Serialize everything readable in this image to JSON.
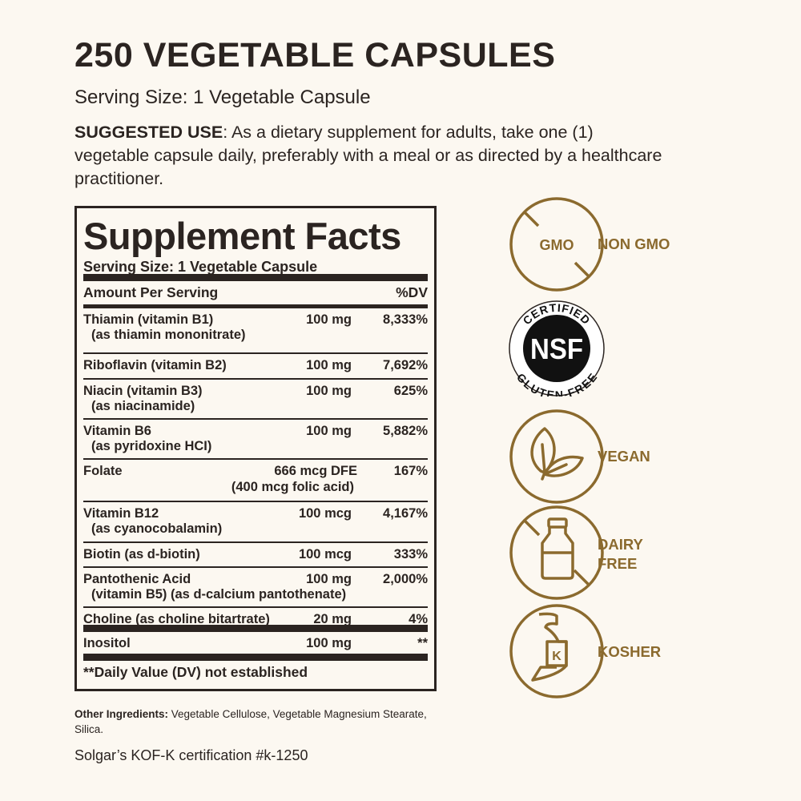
{
  "header": {
    "title": "250 VEGETABLE CAPSULES",
    "serving_size": "Serving Size: 1 Vegetable Capsule",
    "suggested_use_label": "SUGGESTED USE",
    "suggested_use_text": ": As a dietary supplement for adults, take one (1) vegetable capsule daily, preferably with a meal or as directed by a healthcare practitioner."
  },
  "facts": {
    "title": "Supplement Facts",
    "serving_size": "Serving Size: 1 Vegetable Capsule",
    "amount_header": "Amount Per Serving",
    "dv_header": "%DV",
    "rows": [
      {
        "name": "Thiamin (vitamin B1)",
        "sub": "(as thiamin mononitrate)",
        "amount": "100 mg",
        "dv": "8,333%"
      },
      {
        "name": "Riboflavin (vitamin B2)",
        "amount": "100 mg",
        "dv": "7,692%"
      },
      {
        "name": "Niacin (vitamin B3)",
        "sub": "(as niacinamide)",
        "amount": "100 mg",
        "dv": "625%"
      },
      {
        "name": "Vitamin B6",
        "sub": "(as pyridoxine HCI)",
        "amount": "100 mg",
        "dv": "5,882%"
      },
      {
        "name": "Folate",
        "amount": "666 mcg DFE",
        "amount2": "(400 mcg folic acid)",
        "dv": "167%"
      },
      {
        "name": "Vitamin B12",
        "sub": "(as cyanocobalamin)",
        "amount": "100 mcg",
        "dv": "4,167%"
      },
      {
        "name": "Biotin (as d-biotin)",
        "amount": "100 mcg",
        "dv": "333%"
      },
      {
        "name": "Pantothenic Acid",
        "sub": "(vitamin B5) (as d-calcium pantothenate)",
        "amount": "100 mg",
        "dv": "2,000%"
      },
      {
        "name": "Choline (as choline bitartrate)",
        "amount": "20 mg",
        "dv": "4%"
      },
      {
        "name": "Inositol",
        "amount": "100 mg",
        "dv": "**"
      }
    ],
    "footnote": "**Daily Value (DV) not established"
  },
  "other_ingredients": {
    "label": "Other Ingredients:",
    "text": " Vegetable Cellulose, Vegetable Magnesium Stearate, Silica."
  },
  "certification": "Solgar’s KOF-K certification #k-1250",
  "badges": {
    "non_gmo": {
      "icon": "gmo-crossed-icon",
      "icon_text": "GMO",
      "label": "NON GMO"
    },
    "nsf": {
      "icon": "nsf-gluten-free-seal",
      "top": "CERTIFIED",
      "center": "NSF",
      "bottom": "GLUTEN-FREE"
    },
    "vegan": {
      "icon": "leaf-icon",
      "label": "VEGAN"
    },
    "dairy": {
      "icon": "milk-bottle-crossed-icon",
      "line1": "DAIRY",
      "line2": "FREE"
    },
    "kosher": {
      "icon": "kosher-k-icon",
      "icon_text": "K",
      "label": "KOSHER"
    }
  },
  "colors": {
    "background": "#fcf8f1",
    "text": "#2b2421",
    "accent": "#8b6a2e"
  }
}
